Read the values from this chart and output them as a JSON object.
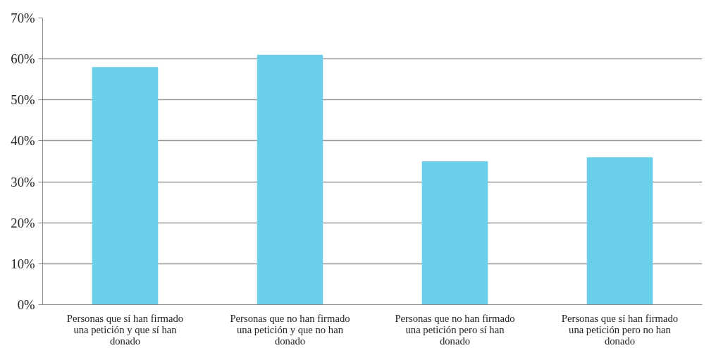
{
  "chart_data": {
    "type": "bar",
    "categories": [
      "Personas que sí han firmado una petición y que sí han donado",
      "Personas que no han firmado una petición y que no han donado",
      "Personas que no han firmado una petición pero sí han donado",
      "Personas que sí han firmado una petición pero no han donado"
    ],
    "values": [
      58,
      61,
      35,
      36
    ],
    "color": "#6ad0ea",
    "ylim": [
      0,
      70
    ],
    "yticks": [
      {
        "value": 0,
        "label": "0%"
      },
      {
        "value": 10,
        "label": "10%"
      },
      {
        "value": 20,
        "label": "20%"
      },
      {
        "value": 30,
        "label": "30%"
      },
      {
        "value": 40,
        "label": "40%"
      },
      {
        "value": 50,
        "label": "50%"
      },
      {
        "value": 60,
        "label": "60%"
      },
      {
        "value": 70,
        "label": "70%"
      }
    ],
    "grid": "y"
  }
}
